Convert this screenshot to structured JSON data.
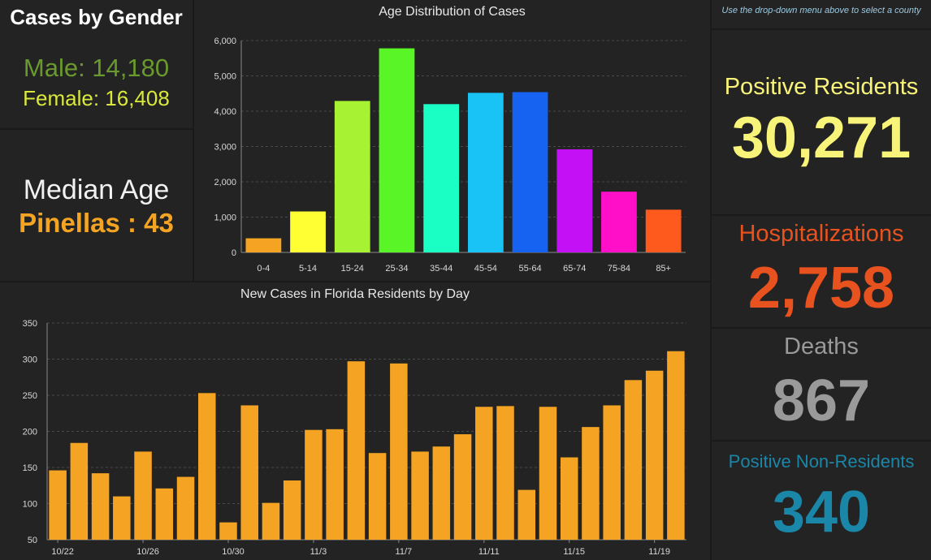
{
  "gender": {
    "title": "Cases by Gender",
    "male_text": "Male: 14,180",
    "female_text": "Female: 16,408",
    "male_color": "#6a9a2e",
    "female_color": "#d9e83a"
  },
  "median": {
    "label": "Median Age",
    "value_text": "Pinellas : 43",
    "value_color": "#f4a422"
  },
  "note": "Use the drop-down menu above to select a county",
  "indicators": {
    "positive_residents": {
      "label": "Positive Residents",
      "value": "30,271",
      "color": "#f8f47a"
    },
    "hospitalizations": {
      "label": "Hospitalizations",
      "value": "2,758",
      "color": "#e8521e"
    },
    "deaths": {
      "label": "Deaths",
      "value": "867",
      "color": "#9a9a9a"
    },
    "non_residents": {
      "label": "Positive Non-Residents",
      "value": "340",
      "color": "#1a86a8"
    }
  },
  "chart_data": [
    {
      "type": "bar",
      "title": "Age Distribution of Cases",
      "categories": [
        "0-4",
        "5-14",
        "15-24",
        "25-34",
        "35-44",
        "45-54",
        "55-64",
        "65-74",
        "75-84",
        "85+"
      ],
      "values": [
        400,
        1160,
        4290,
        5780,
        4200,
        4520,
        4540,
        2920,
        1720,
        1210
      ],
      "colors": [
        "#f4a422",
        "#ffff33",
        "#a6f233",
        "#59f526",
        "#1affc4",
        "#19c3f5",
        "#1663f2",
        "#c410f5",
        "#ff10c8",
        "#ff5a1e"
      ],
      "ylim": [
        0,
        6000
      ],
      "yticks": [
        0,
        1000,
        2000,
        3000,
        4000,
        5000,
        6000
      ],
      "ytick_labels": [
        "0",
        "1,000",
        "2,000",
        "3,000",
        "4,000",
        "5,000",
        "6,000"
      ],
      "grid": true
    },
    {
      "type": "bar",
      "title": "New Cases in Florida Residents by Day",
      "categories": [
        "10/22",
        "10/23",
        "10/24",
        "10/25",
        "10/26",
        "10/27",
        "10/28",
        "10/29",
        "10/30",
        "10/31",
        "11/1",
        "11/2",
        "11/3",
        "11/4",
        "11/5",
        "11/6",
        "11/7",
        "11/8",
        "11/9",
        "11/10",
        "11/11",
        "11/12",
        "11/13",
        "11/14",
        "11/15",
        "11/16",
        "11/17",
        "11/18",
        "11/19",
        "11/20"
      ],
      "values": [
        146,
        184,
        142,
        110,
        172,
        121,
        137,
        253,
        74,
        236,
        101,
        132,
        202,
        203,
        297,
        170,
        294,
        172,
        179,
        196,
        234,
        235,
        119,
        234,
        164,
        206,
        236,
        271,
        284,
        311
      ],
      "tick_labels": [
        "10/22",
        "10/26",
        "10/30",
        "11/3",
        "11/7",
        "11/11",
        "11/15",
        "11/19"
      ],
      "tick_indices": [
        0,
        4,
        8,
        12,
        16,
        20,
        24,
        28
      ],
      "bar_color": "#f4a422",
      "ylim": [
        50,
        350
      ],
      "yticks": [
        50,
        100,
        150,
        200,
        250,
        300,
        350
      ],
      "grid": true
    }
  ]
}
